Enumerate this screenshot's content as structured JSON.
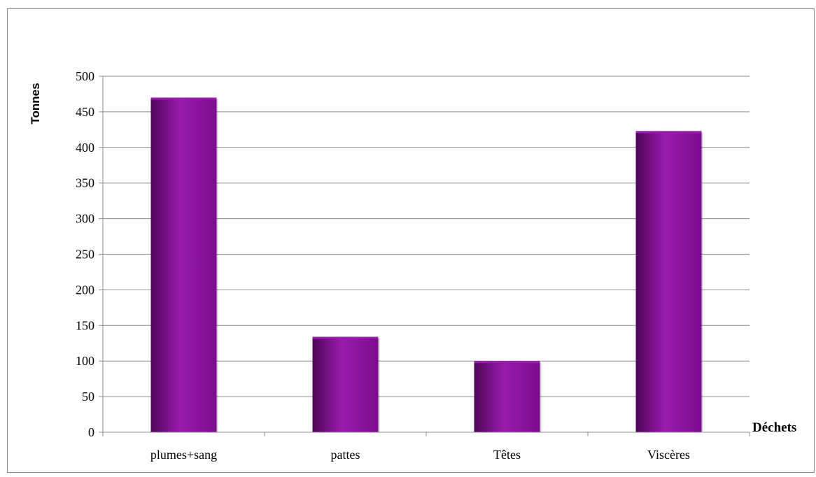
{
  "chart_data": {
    "type": "bar",
    "categories": [
      "plumes+sang",
      "pattes",
      "Têtes",
      "Viscères"
    ],
    "values": [
      470,
      134,
      100,
      423
    ],
    "xlabel": "Déchets",
    "ylabel": "Tonnes",
    "ylim": [
      0,
      500
    ],
    "yticks": [
      0,
      50,
      100,
      150,
      200,
      250,
      300,
      350,
      400,
      450,
      500
    ],
    "grid": true,
    "legend": "none",
    "colors": {
      "bar": "#7a0c8c",
      "bar_light": "#9a1cae",
      "bar_dark": "#4e0558",
      "grid": "#8c8c8c",
      "axis": "#8c8c8c"
    }
  }
}
